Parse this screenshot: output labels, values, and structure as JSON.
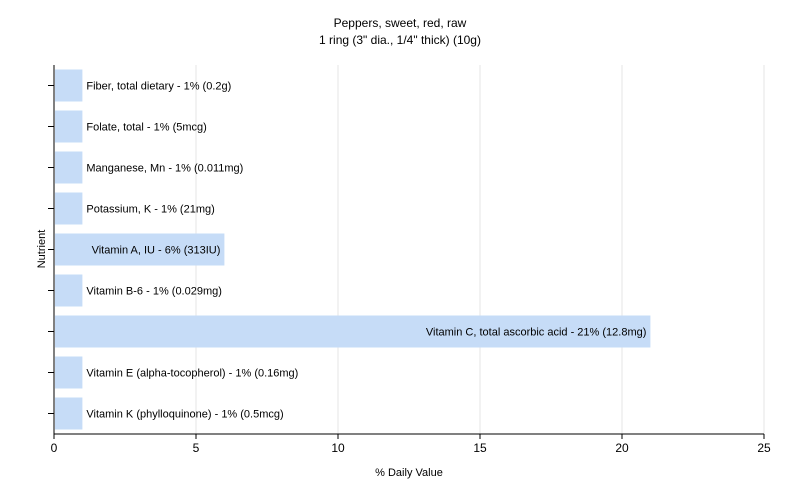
{
  "chart_data": {
    "type": "bar",
    "orientation": "horizontal",
    "title": "Peppers, sweet, red, raw",
    "subtitle": "1 ring (3\" dia., 1/4\" thick) (10g)",
    "xlabel": "% Daily Value",
    "ylabel": "Nutrient",
    "xlim": [
      0,
      25
    ],
    "xticks": [
      "0",
      "5",
      "10",
      "15",
      "20",
      "25"
    ],
    "grid": true,
    "bar_color": "#c6dcf7",
    "categories": [
      "Fiber, total dietary",
      "Folate, total",
      "Manganese, Mn",
      "Potassium, K",
      "Vitamin A, IU",
      "Vitamin B-6",
      "Vitamin C, total ascorbic acid",
      "Vitamin E (alpha-tocopherol)",
      "Vitamin K (phylloquinone)"
    ],
    "values": [
      1,
      1,
      1,
      1,
      6,
      1,
      21,
      1,
      1
    ],
    "labels": [
      "Fiber, total dietary - 1% (0.2g)",
      "Folate, total - 1% (5mcg)",
      "Manganese, Mn - 1% (0.011mg)",
      "Potassium, K - 1% (21mg)",
      "Vitamin A, IU - 6% (313IU)",
      "Vitamin B-6 - 1% (0.029mg)",
      "Vitamin C, total ascorbic acid - 21% (12.8mg)",
      "Vitamin E (alpha-tocopherol) - 1% (0.16mg)",
      "Vitamin K (phylloquinone) - 1% (0.5mcg)"
    ]
  }
}
